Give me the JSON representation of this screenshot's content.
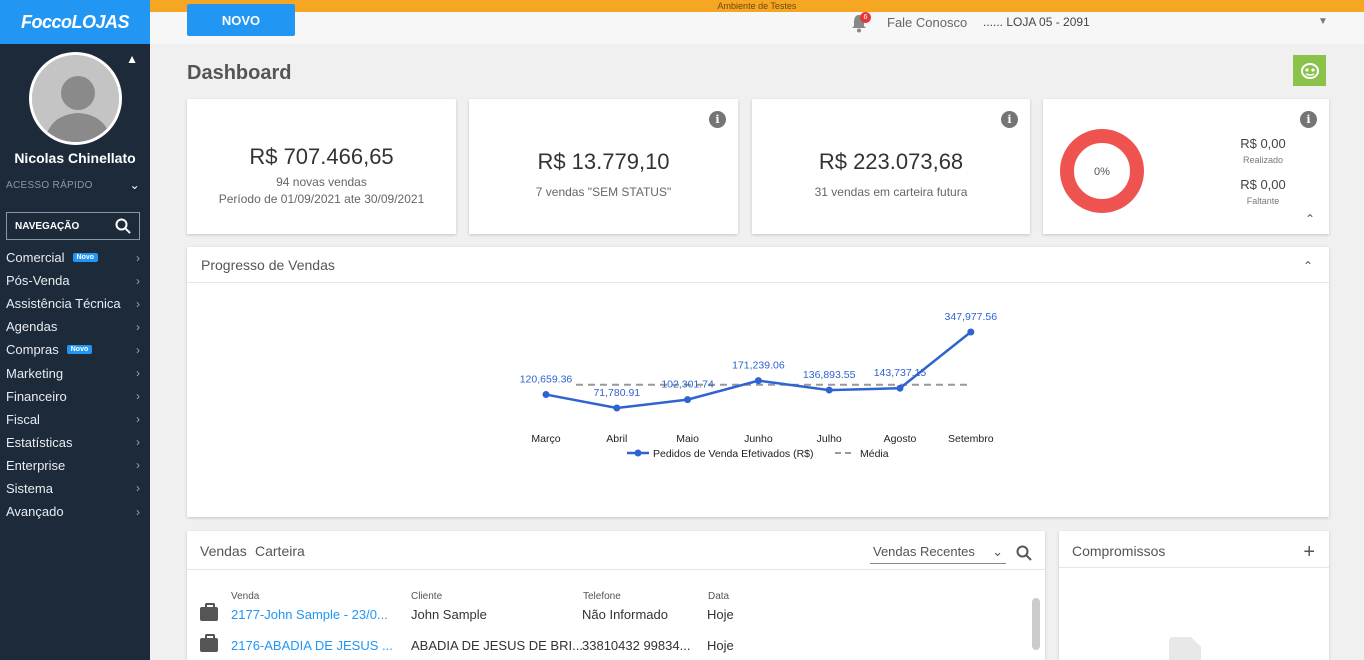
{
  "app": {
    "logo": "FoccoLOJAS",
    "environment": "Ambiente de Testes"
  },
  "sidebar": {
    "user_name": "Nicolas Chinellato",
    "quick_access_label": "ACESSO RÁPIDO",
    "nav_search_label": "NAVEGAÇÃO",
    "items": [
      {
        "label": "Comercial",
        "badge": "Novo"
      },
      {
        "label": "Pós-Venda",
        "badge": ""
      },
      {
        "label": "Assistência Técnica",
        "badge": ""
      },
      {
        "label": "Agendas",
        "badge": ""
      },
      {
        "label": "Compras",
        "badge": "Novo"
      },
      {
        "label": "Marketing",
        "badge": ""
      },
      {
        "label": "Financeiro",
        "badge": ""
      },
      {
        "label": "Fiscal",
        "badge": ""
      },
      {
        "label": "Estatísticas",
        "badge": ""
      },
      {
        "label": "Enterprise",
        "badge": ""
      },
      {
        "label": "Sistema",
        "badge": ""
      },
      {
        "label": "Avançado",
        "badge": ""
      }
    ]
  },
  "topbar": {
    "novo_label": "NOVO",
    "notification_count": "6",
    "fale_conosco": "Fale Conosco",
    "store_selector": "...... LOJA 05 - 2091"
  },
  "main": {
    "title": "Dashboard",
    "kpi_cards": [
      {
        "value": "R$ 707.466,65",
        "sub1": "94 novas vendas",
        "sub2": "Período de 01/09/2021 ate 30/09/2021"
      },
      {
        "value": "R$ 13.779,10",
        "sub1": "7 vendas \"SEM STATUS\""
      },
      {
        "value": "R$ 223.073,68",
        "sub1": "31 vendas em carteira futura"
      }
    ],
    "goal_card": {
      "percent_label": "0%",
      "percent": 0,
      "realizado_value": "R$ 0,00",
      "realizado_label": "Realizado",
      "faltante_value": "R$ 0,00",
      "faltante_label": "Faltante"
    },
    "progress_section_title": "Progresso de Vendas",
    "sales_panel": {
      "tabs": [
        "Vendas",
        "Carteira"
      ],
      "filter_selected": "Vendas Recentes",
      "columns": [
        "Venda",
        "Cliente",
        "Telefone",
        "Data"
      ],
      "rows": [
        [
          "2177-John Sample - 23/0...",
          "John Sample",
          "Não Informado",
          "Hoje"
        ],
        [
          "2176-ABADIA DE JESUS ...",
          "ABADIA DE JESUS DE BRI...",
          "33810432 99834...",
          "Hoje"
        ]
      ]
    },
    "compromissos_title": "Compromissos"
  },
  "colors": {
    "accent": "#2196f3",
    "sidebar_bg": "#1c2a3a",
    "env_strip": "#f5a623",
    "donut": "#ef5350",
    "robot": "#8bc34a"
  },
  "chart_data": {
    "type": "line",
    "categories": [
      "Março",
      "Abril",
      "Maio",
      "Junho",
      "Julho",
      "Agosto",
      "Setembro"
    ],
    "series": [
      {
        "name": "Pedidos de Venda Efetivados (R$)",
        "values": [
          120659.36,
          71780.91,
          102301.74,
          171239.06,
          136893.55,
          143737.15,
          347977.56
        ],
        "labels": [
          "120,659.36",
          "71,780.91",
          "102,301.74",
          "171,239.06",
          "136,893.55",
          "143,737.15",
          "347,977.56"
        ]
      },
      {
        "name": "Média",
        "style": "dashed",
        "values": [
          156369.9,
          156369.9,
          156369.9,
          156369.9,
          156369.9,
          156369.9,
          156369.9
        ]
      }
    ],
    "legend_position": "bottom",
    "grid": false
  }
}
